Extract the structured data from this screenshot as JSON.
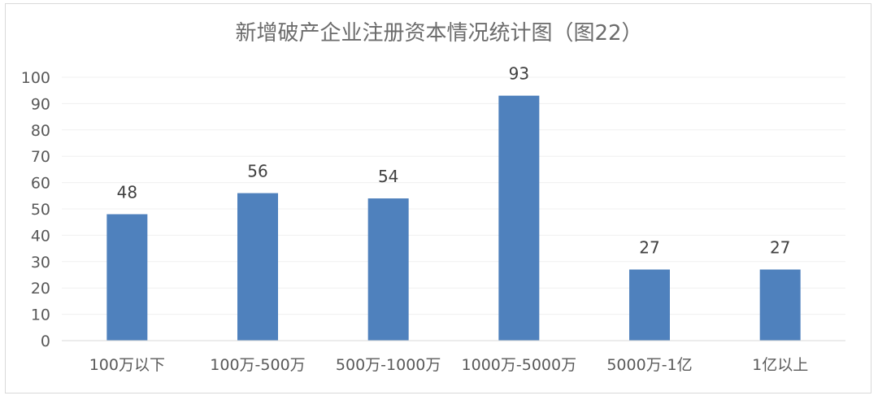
{
  "chart_data": {
    "type": "bar",
    "title": "新增破产企业注册资本情况统计图（图22）",
    "categories": [
      "100万以下",
      "100万-500万",
      "500万-1000万",
      "1000万-5000万",
      "5000万-1亿",
      "1亿以上"
    ],
    "values": [
      48,
      56,
      54,
      93,
      27,
      27
    ],
    "data_labels": [
      "48",
      "56",
      "54",
      "93",
      "27",
      "27"
    ],
    "yticks": [
      "0",
      "10",
      "20",
      "30",
      "40",
      "50",
      "60",
      "70",
      "80",
      "90",
      "100"
    ],
    "ylim": [
      0,
      100
    ],
    "grid": true,
    "legend": "none",
    "xlabel": "",
    "ylabel": "",
    "bar_color": "#4f81bd",
    "grid_color": "#f0f0f0"
  }
}
